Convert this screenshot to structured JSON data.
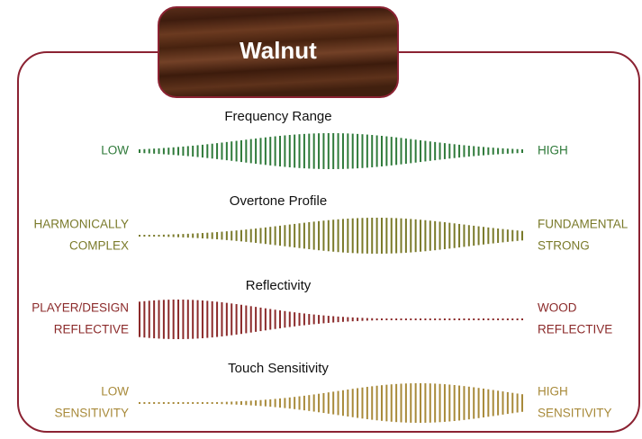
{
  "title": "Walnut",
  "rows": [
    {
      "title": "Frequency Range",
      "left": [
        "LOW"
      ],
      "right": [
        "HIGH"
      ]
    },
    {
      "title": "Overtone Profile",
      "left": [
        "HARMONICALLY",
        "COMPLEX"
      ],
      "right": [
        "FUNDAMENTAL",
        "STRONG"
      ]
    },
    {
      "title": "Reflectivity",
      "left": [
        "PLAYER/DESIGN",
        "REFLECTIVE"
      ],
      "right": [
        "WOOD",
        "REFLECTIVE"
      ]
    },
    {
      "title": "Touch Sensitivity",
      "left": [
        "LOW",
        "SENSITIVITY"
      ],
      "right": [
        "HIGH",
        "SENSITIVITY"
      ]
    }
  ]
}
